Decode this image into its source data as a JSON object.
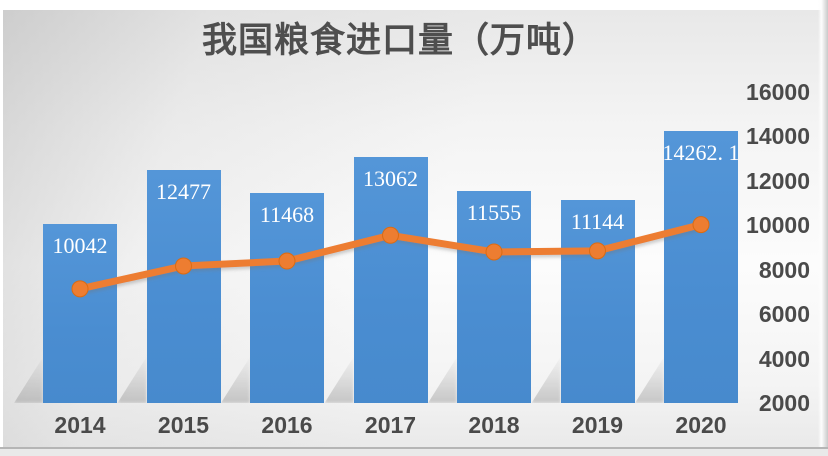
{
  "colors": {
    "bar": "#4C8ED3",
    "line": "#ED7D31",
    "line_marker_stroke": "#DB6B12",
    "title_text": "#4E4E4E",
    "axis_text": "#4A4A4A",
    "bar_label_text": "#FFFFFF",
    "background_top": "#E7E7E7",
    "background_bottom": "#E8E8E8"
  },
  "chart_data": {
    "type": "bar+line",
    "title": "我国粮食进口量（万吨）",
    "categories": [
      "2014",
      "2015",
      "2016",
      "2017",
      "2018",
      "2019",
      "2020"
    ],
    "series": [
      {
        "type": "bar",
        "values": [
          10042,
          12477,
          11468,
          13062,
          11555,
          11144,
          14262.1
        ],
        "data_labels": [
          "10042",
          "12477",
          "11468",
          "13062",
          "11555",
          "11144",
          "14262. 1"
        ],
        "color": "#4C8ED3"
      },
      {
        "type": "line",
        "values": [
          7140,
          8170,
          8390,
          9550,
          8800,
          8850,
          10030
        ],
        "values_estimated_from_gridlines": true,
        "color": "#ED7D31",
        "marker": "circle"
      }
    ],
    "y_axis": {
      "side": "right",
      "min": 2000,
      "max": 16000,
      "step": 2000,
      "tick_labels": [
        "16000",
        "14000",
        "12000",
        "10000",
        "8000",
        "6000",
        "4000",
        "2000"
      ]
    },
    "x_axis": {
      "tick_labels": [
        "2014",
        "2015",
        "2016",
        "2017",
        "2018",
        "2019",
        "2020"
      ]
    },
    "grid": false,
    "legend": "none"
  }
}
